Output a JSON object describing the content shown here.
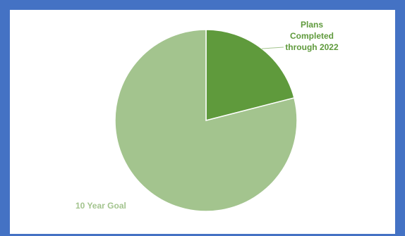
{
  "chart_data": {
    "type": "pie",
    "title": "",
    "slices": [
      {
        "label": "Plans Completed through 2022",
        "label_lines": [
          "Plans",
          "Completed",
          "through 2022"
        ],
        "value": 21,
        "color": "#5f9a3c"
      },
      {
        "label": "10 Year Goal",
        "label_lines": [
          "10 Year Goal"
        ],
        "value": 79,
        "color": "#a3c48e"
      }
    ],
    "legend": "none",
    "data_labels": "category name"
  }
}
